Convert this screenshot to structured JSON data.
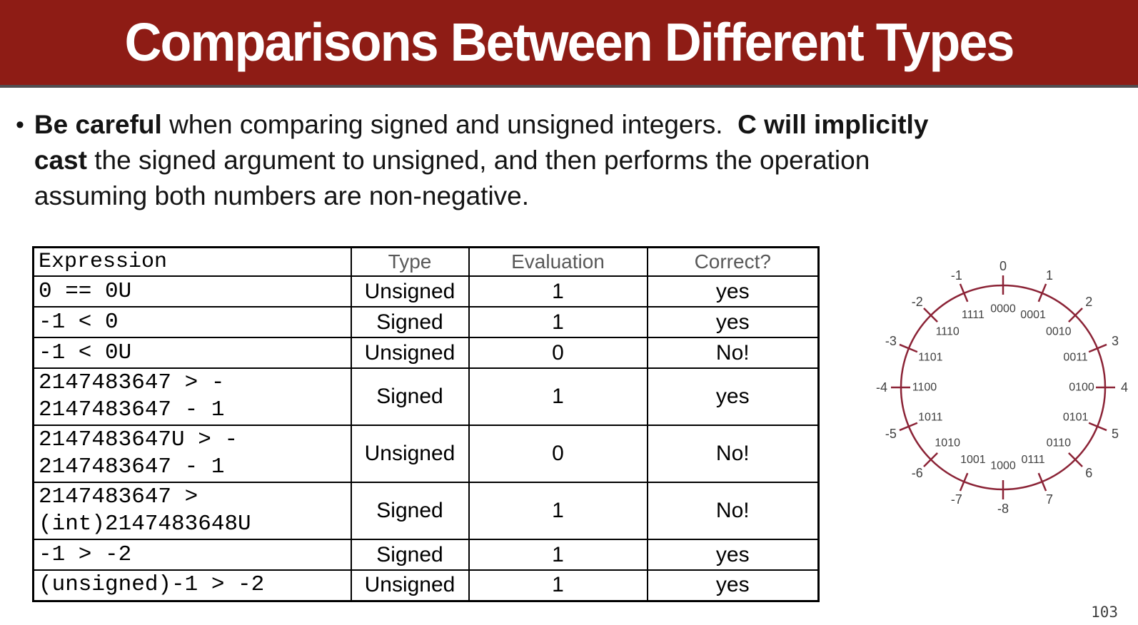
{
  "slide": {
    "title": "Comparisons Between Different Types",
    "page_number": "103",
    "colors": {
      "header_bg": "#8E1C15",
      "divider": "#514D50",
      "wheel": "#8B2336",
      "label": "#3F3F3F",
      "th_gray": "#595959",
      "ink": "#111111"
    },
    "bullet": {
      "marker": "•",
      "lines": [
        [
          {
            "text": "Be careful",
            "bold": true
          },
          {
            "text": " when comparing signed and unsigned integers.  ",
            "bold": false
          },
          {
            "text": "C will implicitly",
            "bold": true
          }
        ],
        [
          {
            "text": "cast",
            "bold": true
          },
          {
            "text": " the signed argument to unsigned, and then performs the operation",
            "bold": false
          }
        ],
        [
          {
            "text": "assuming both numbers are non-negative.",
            "bold": false
          }
        ]
      ]
    },
    "table": {
      "headers": [
        "Expression",
        "Type",
        "Evaluation",
        "Correct?"
      ],
      "rows": [
        {
          "expression": [
            "0 == 0U"
          ],
          "type": "Unsigned",
          "evaluation": "1",
          "correct": "yes"
        },
        {
          "expression": [
            "-1 < 0"
          ],
          "type": "Signed",
          "evaluation": "1",
          "correct": "yes"
        },
        {
          "expression": [
            "-1 < 0U"
          ],
          "type": "Unsigned",
          "evaluation": "0",
          "correct": "No!"
        },
        {
          "expression": [
            "2147483647 > -",
            "2147483647 - 1"
          ],
          "type": "Signed",
          "evaluation": "1",
          "correct": "yes"
        },
        {
          "expression": [
            "2147483647U > -",
            "2147483647 - 1"
          ],
          "type": "Unsigned",
          "evaluation": "0",
          "correct": "No!"
        },
        {
          "expression": [
            "2147483647 >",
            "(int)2147483648U"
          ],
          "type": "Signed",
          "evaluation": "1",
          "correct": "No!"
        },
        {
          "expression": [
            "-1 > -2"
          ],
          "type": "Signed",
          "evaluation": "1",
          "correct": "yes"
        },
        {
          "expression": [
            "(unsigned)-1 > -2"
          ],
          "type": "Unsigned",
          "evaluation": "1",
          "correct": "yes"
        }
      ]
    },
    "wheel": {
      "decimal_labels": [
        "0",
        "1",
        "2",
        "3",
        "4",
        "5",
        "6",
        "7",
        "-8",
        "-7",
        "-6",
        "-5",
        "-4",
        "-3",
        "-2",
        "-1"
      ],
      "binary_labels": [
        "0000",
        "0001",
        "0010",
        "0011",
        "0100",
        "0101",
        "0110",
        "0111",
        "1000",
        "1001",
        "1010",
        "1011",
        "1100",
        "1101",
        "1110",
        "1111"
      ]
    }
  }
}
